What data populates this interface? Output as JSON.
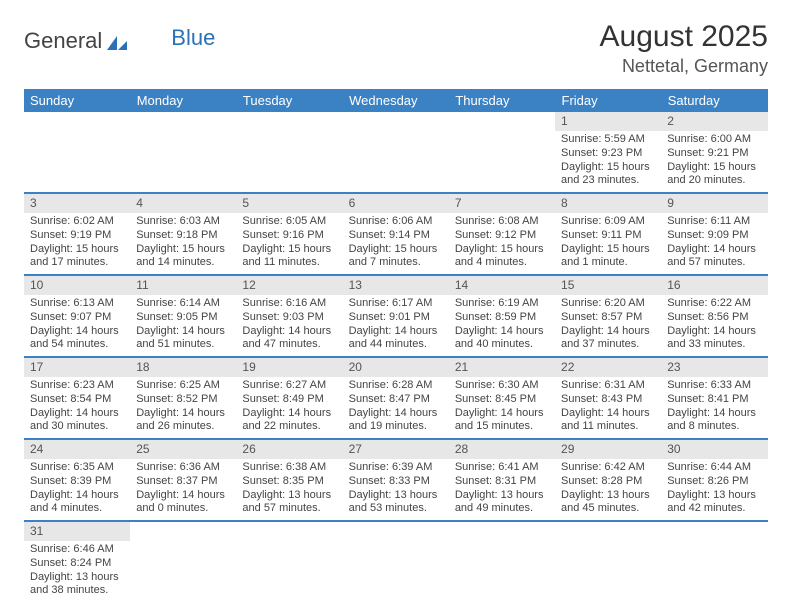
{
  "brand": {
    "word1": "General",
    "word2": "Blue"
  },
  "header": {
    "title": "August 2025",
    "location": "Nettetal, Germany"
  },
  "colors": {
    "accent": "#3b82c4",
    "grey_bar": "#e7e7e7"
  },
  "day_labels": [
    "Sunday",
    "Monday",
    "Tuesday",
    "Wednesday",
    "Thursday",
    "Friday",
    "Saturday"
  ],
  "weeks": [
    [
      null,
      null,
      null,
      null,
      null,
      {
        "n": "1",
        "sr": "Sunrise: 5:59 AM",
        "ss": "Sunset: 9:23 PM",
        "d1": "Daylight: 15 hours",
        "d2": "and 23 minutes."
      },
      {
        "n": "2",
        "sr": "Sunrise: 6:00 AM",
        "ss": "Sunset: 9:21 PM",
        "d1": "Daylight: 15 hours",
        "d2": "and 20 minutes."
      }
    ],
    [
      {
        "n": "3",
        "sr": "Sunrise: 6:02 AM",
        "ss": "Sunset: 9:19 PM",
        "d1": "Daylight: 15 hours",
        "d2": "and 17 minutes."
      },
      {
        "n": "4",
        "sr": "Sunrise: 6:03 AM",
        "ss": "Sunset: 9:18 PM",
        "d1": "Daylight: 15 hours",
        "d2": "and 14 minutes."
      },
      {
        "n": "5",
        "sr": "Sunrise: 6:05 AM",
        "ss": "Sunset: 9:16 PM",
        "d1": "Daylight: 15 hours",
        "d2": "and 11 minutes."
      },
      {
        "n": "6",
        "sr": "Sunrise: 6:06 AM",
        "ss": "Sunset: 9:14 PM",
        "d1": "Daylight: 15 hours",
        "d2": "and 7 minutes."
      },
      {
        "n": "7",
        "sr": "Sunrise: 6:08 AM",
        "ss": "Sunset: 9:12 PM",
        "d1": "Daylight: 15 hours",
        "d2": "and 4 minutes."
      },
      {
        "n": "8",
        "sr": "Sunrise: 6:09 AM",
        "ss": "Sunset: 9:11 PM",
        "d1": "Daylight: 15 hours",
        "d2": "and 1 minute."
      },
      {
        "n": "9",
        "sr": "Sunrise: 6:11 AM",
        "ss": "Sunset: 9:09 PM",
        "d1": "Daylight: 14 hours",
        "d2": "and 57 minutes."
      }
    ],
    [
      {
        "n": "10",
        "sr": "Sunrise: 6:13 AM",
        "ss": "Sunset: 9:07 PM",
        "d1": "Daylight: 14 hours",
        "d2": "and 54 minutes."
      },
      {
        "n": "11",
        "sr": "Sunrise: 6:14 AM",
        "ss": "Sunset: 9:05 PM",
        "d1": "Daylight: 14 hours",
        "d2": "and 51 minutes."
      },
      {
        "n": "12",
        "sr": "Sunrise: 6:16 AM",
        "ss": "Sunset: 9:03 PM",
        "d1": "Daylight: 14 hours",
        "d2": "and 47 minutes."
      },
      {
        "n": "13",
        "sr": "Sunrise: 6:17 AM",
        "ss": "Sunset: 9:01 PM",
        "d1": "Daylight: 14 hours",
        "d2": "and 44 minutes."
      },
      {
        "n": "14",
        "sr": "Sunrise: 6:19 AM",
        "ss": "Sunset: 8:59 PM",
        "d1": "Daylight: 14 hours",
        "d2": "and 40 minutes."
      },
      {
        "n": "15",
        "sr": "Sunrise: 6:20 AM",
        "ss": "Sunset: 8:57 PM",
        "d1": "Daylight: 14 hours",
        "d2": "and 37 minutes."
      },
      {
        "n": "16",
        "sr": "Sunrise: 6:22 AM",
        "ss": "Sunset: 8:56 PM",
        "d1": "Daylight: 14 hours",
        "d2": "and 33 minutes."
      }
    ],
    [
      {
        "n": "17",
        "sr": "Sunrise: 6:23 AM",
        "ss": "Sunset: 8:54 PM",
        "d1": "Daylight: 14 hours",
        "d2": "and 30 minutes."
      },
      {
        "n": "18",
        "sr": "Sunrise: 6:25 AM",
        "ss": "Sunset: 8:52 PM",
        "d1": "Daylight: 14 hours",
        "d2": "and 26 minutes."
      },
      {
        "n": "19",
        "sr": "Sunrise: 6:27 AM",
        "ss": "Sunset: 8:49 PM",
        "d1": "Daylight: 14 hours",
        "d2": "and 22 minutes."
      },
      {
        "n": "20",
        "sr": "Sunrise: 6:28 AM",
        "ss": "Sunset: 8:47 PM",
        "d1": "Daylight: 14 hours",
        "d2": "and 19 minutes."
      },
      {
        "n": "21",
        "sr": "Sunrise: 6:30 AM",
        "ss": "Sunset: 8:45 PM",
        "d1": "Daylight: 14 hours",
        "d2": "and 15 minutes."
      },
      {
        "n": "22",
        "sr": "Sunrise: 6:31 AM",
        "ss": "Sunset: 8:43 PM",
        "d1": "Daylight: 14 hours",
        "d2": "and 11 minutes."
      },
      {
        "n": "23",
        "sr": "Sunrise: 6:33 AM",
        "ss": "Sunset: 8:41 PM",
        "d1": "Daylight: 14 hours",
        "d2": "and 8 minutes."
      }
    ],
    [
      {
        "n": "24",
        "sr": "Sunrise: 6:35 AM",
        "ss": "Sunset: 8:39 PM",
        "d1": "Daylight: 14 hours",
        "d2": "and 4 minutes."
      },
      {
        "n": "25",
        "sr": "Sunrise: 6:36 AM",
        "ss": "Sunset: 8:37 PM",
        "d1": "Daylight: 14 hours",
        "d2": "and 0 minutes."
      },
      {
        "n": "26",
        "sr": "Sunrise: 6:38 AM",
        "ss": "Sunset: 8:35 PM",
        "d1": "Daylight: 13 hours",
        "d2": "and 57 minutes."
      },
      {
        "n": "27",
        "sr": "Sunrise: 6:39 AM",
        "ss": "Sunset: 8:33 PM",
        "d1": "Daylight: 13 hours",
        "d2": "and 53 minutes."
      },
      {
        "n": "28",
        "sr": "Sunrise: 6:41 AM",
        "ss": "Sunset: 8:31 PM",
        "d1": "Daylight: 13 hours",
        "d2": "and 49 minutes."
      },
      {
        "n": "29",
        "sr": "Sunrise: 6:42 AM",
        "ss": "Sunset: 8:28 PM",
        "d1": "Daylight: 13 hours",
        "d2": "and 45 minutes."
      },
      {
        "n": "30",
        "sr": "Sunrise: 6:44 AM",
        "ss": "Sunset: 8:26 PM",
        "d1": "Daylight: 13 hours",
        "d2": "and 42 minutes."
      }
    ],
    [
      {
        "n": "31",
        "sr": "Sunrise: 6:46 AM",
        "ss": "Sunset: 8:24 PM",
        "d1": "Daylight: 13 hours",
        "d2": "and 38 minutes."
      },
      null,
      null,
      null,
      null,
      null,
      null
    ]
  ]
}
